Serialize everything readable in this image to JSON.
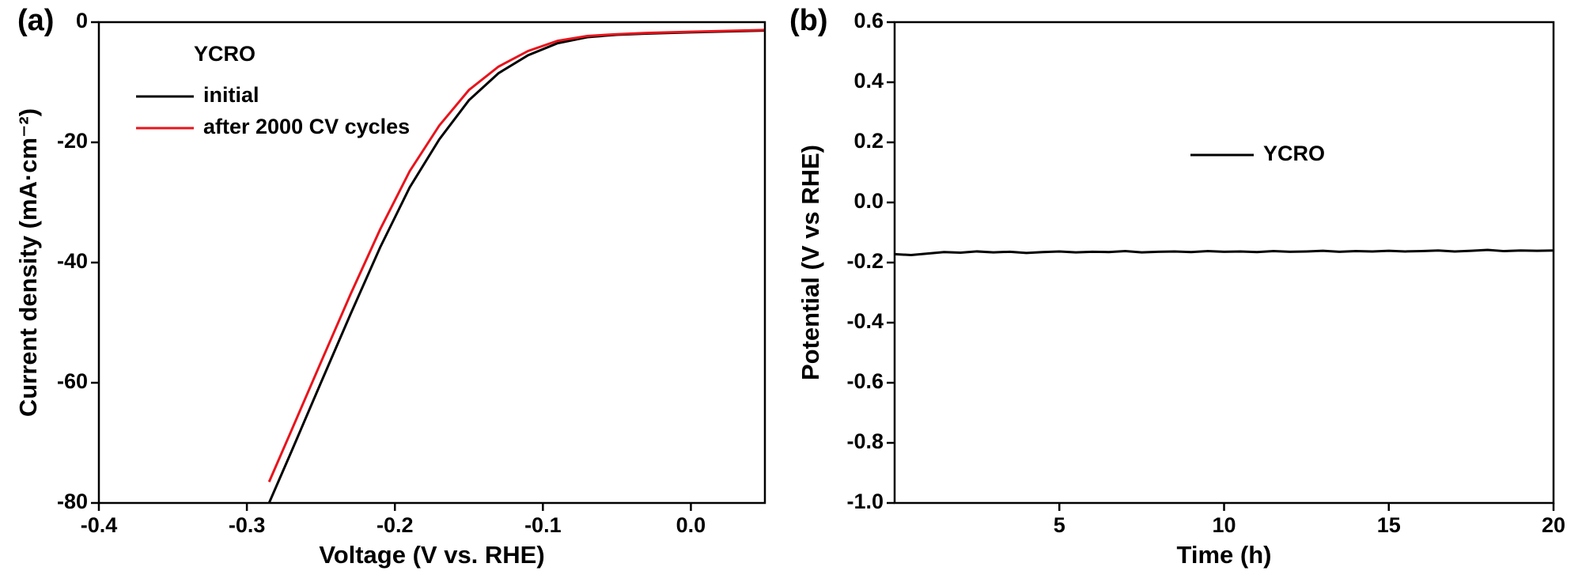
{
  "chart_data": [
    {
      "type": "line",
      "panel_label": "(a)",
      "x_label": "Voltage (V vs. RHE)",
      "y_label": "Current density (mA·cm⁻²)",
      "legend_title": "YCRO",
      "x": [
        -0.285,
        -0.27,
        -0.25,
        -0.23,
        -0.21,
        -0.19,
        -0.17,
        -0.15,
        -0.13,
        -0.11,
        -0.09,
        -0.07,
        -0.05,
        -0.03,
        0,
        0.05
      ],
      "series": [
        {
          "name": "initial",
          "color": "#000000",
          "values": [
            -80,
            -71.5,
            -60,
            -48.6,
            -37.5,
            -27.5,
            -19.5,
            -13,
            -8.5,
            -5.5,
            -3.5,
            -2.5,
            -2.1,
            -1.9,
            -1.7,
            -1.4
          ]
        },
        {
          "name": "after 2000 CV cycles",
          "color": "#e8141c",
          "values": [
            -76.5,
            -68,
            -56.6,
            -45.3,
            -34.5,
            -24.8,
            -17.2,
            -11.3,
            -7.4,
            -4.8,
            -3.1,
            -2.3,
            -2.0,
            -1.8,
            -1.6,
            -1.3
          ]
        }
      ],
      "xlim": [
        -0.4,
        0.05
      ],
      "xticks": [
        -0.4,
        -0.3,
        -0.2,
        -0.1,
        {
          "value": 0,
          "label": "0.0"
        }
      ],
      "ylim": [
        -80,
        0
      ],
      "yticks": [
        -80,
        -60,
        -40,
        -20,
        0
      ]
    },
    {
      "type": "line",
      "panel_label": "(b)",
      "x_label": "Time (h)",
      "y_label": "Potential (V vs RHE)",
      "x": [
        0,
        0.5,
        1,
        1.5,
        2,
        2.5,
        3,
        3.5,
        4,
        4.5,
        5,
        5.5,
        6,
        6.5,
        7,
        7.5,
        8,
        8.5,
        9,
        9.5,
        10,
        10.5,
        11,
        11.5,
        12,
        12.5,
        13,
        13.5,
        14,
        14.5,
        15,
        15.5,
        16,
        16.5,
        17,
        17.5,
        18,
        18.5,
        19,
        19.5,
        20
      ],
      "series": [
        {
          "name": "YCRO",
          "color": "#000000",
          "values": [
            -0.172,
            -0.175,
            -0.17,
            -0.165,
            -0.167,
            -0.163,
            -0.166,
            -0.164,
            -0.168,
            -0.165,
            -0.163,
            -0.166,
            -0.164,
            -0.165,
            -0.162,
            -0.166,
            -0.164,
            -0.163,
            -0.165,
            -0.162,
            -0.164,
            -0.163,
            -0.165,
            -0.162,
            -0.164,
            -0.163,
            -0.161,
            -0.164,
            -0.162,
            -0.163,
            -0.161,
            -0.163,
            -0.162,
            -0.16,
            -0.163,
            -0.161,
            -0.158,
            -0.162,
            -0.16,
            -0.161,
            -0.16
          ]
        }
      ],
      "xlim": [
        0,
        20
      ],
      "xticks": [
        5,
        10,
        15,
        20
      ],
      "ylim": [
        -1.0,
        0.6
      ],
      "yticks": [
        {
          "value": -1.0,
          "label": "-1.0"
        },
        -0.8,
        -0.6,
        -0.4,
        -0.2,
        {
          "value": 0,
          "label": "0.0"
        },
        0.2,
        0.4,
        0.6
      ]
    }
  ]
}
